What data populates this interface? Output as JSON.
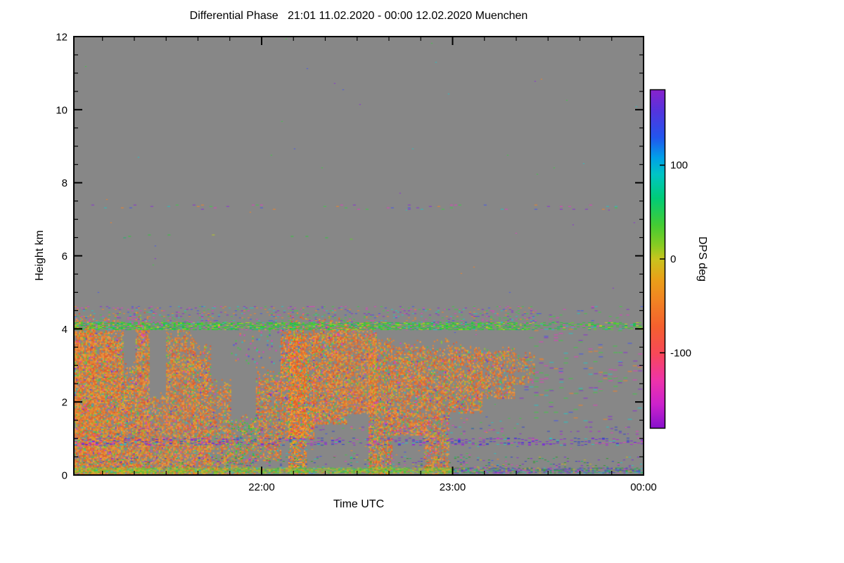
{
  "page": {
    "background": "#ffffff"
  },
  "chart_data": {
    "type": "heatmap",
    "title": "Differential Phase   21:01 11.02.2020 - 00:00 12.02.2020 Muenchen",
    "xlabel": "Time UTC",
    "ylabel": "Height km",
    "x_range_hours": [
      21.0167,
      24.0
    ],
    "x_major_ticks": [
      {
        "hour": 22,
        "label": "22:00"
      },
      {
        "hour": 23,
        "label": "23:00"
      },
      {
        "hour": 24,
        "label": "00:00"
      }
    ],
    "x_minor_step_hours": 0.1666667,
    "y_range_km": [
      0,
      12
    ],
    "y_major_ticks": [
      {
        "km": 0,
        "label": "0"
      },
      {
        "km": 2,
        "label": "2"
      },
      {
        "km": 4,
        "label": "4"
      },
      {
        "km": 6,
        "label": "6"
      },
      {
        "km": 8,
        "label": "8"
      },
      {
        "km": 10,
        "label": "10"
      },
      {
        "km": 12,
        "label": "12"
      }
    ],
    "y_minor_step_km": 0.5,
    "plot_bg": "#878787",
    "axis_color": "#000000",
    "colorbar": {
      "label": "DPS deg",
      "value_range": [
        -180,
        180
      ],
      "ticks": [
        {
          "value": 100,
          "label": "100"
        },
        {
          "value": 0,
          "label": "0"
        },
        {
          "value": -100,
          "label": "-100"
        }
      ],
      "gradient_top_to_bottom": [
        {
          "pos": 0.0,
          "color": "#8822cc"
        },
        {
          "pos": 0.06,
          "color": "#5533dd"
        },
        {
          "pos": 0.14,
          "color": "#2255ee"
        },
        {
          "pos": 0.2,
          "color": "#00a0e8"
        },
        {
          "pos": 0.25,
          "color": "#00c4c4"
        },
        {
          "pos": 0.32,
          "color": "#00cc77"
        },
        {
          "pos": 0.4,
          "color": "#44cc33"
        },
        {
          "pos": 0.46,
          "color": "#88cc22"
        },
        {
          "pos": 0.5,
          "color": "#c8c41e"
        },
        {
          "pos": 0.56,
          "color": "#eaa018"
        },
        {
          "pos": 0.63,
          "color": "#f28024"
        },
        {
          "pos": 0.7,
          "color": "#f4602e"
        },
        {
          "pos": 0.78,
          "color": "#f84858"
        },
        {
          "pos": 0.86,
          "color": "#ee33aa"
        },
        {
          "pos": 0.93,
          "color": "#cc22cc"
        },
        {
          "pos": 1.0,
          "color": "#8811cc"
        }
      ]
    },
    "palettes": {
      "rain": [
        [
          "#f28329",
          0.32
        ],
        [
          "#ef6a22",
          0.2
        ],
        [
          "#fa9b3a",
          0.16
        ],
        [
          "#e8552b",
          0.1
        ],
        [
          "#d8b31e",
          0.07
        ],
        [
          "#8fc92c",
          0.05
        ],
        [
          "#3fc94f",
          0.04
        ],
        [
          "#e23fbf",
          0.03
        ],
        [
          "#27c3c3",
          0.015
        ],
        [
          "#7a2fd6",
          0.015
        ]
      ],
      "mix": [
        [
          "#3ecb46",
          0.22
        ],
        [
          "#e23fbf",
          0.18
        ],
        [
          "#27c3c3",
          0.16
        ],
        [
          "#f28329",
          0.16
        ],
        [
          "#4455ee",
          0.12
        ],
        [
          "#8a2fd6",
          0.16
        ]
      ],
      "green": [
        [
          "#2ecb3a",
          0.45
        ],
        [
          "#5ed42a",
          0.2
        ],
        [
          "#18b86a",
          0.15
        ],
        [
          "#bfd01e",
          0.1
        ],
        [
          "#27c3c3",
          0.05
        ],
        [
          "#e23fbf",
          0.05
        ]
      ],
      "ground": [
        [
          "#2e9e2e",
          0.22
        ],
        [
          "#3344cc",
          0.22
        ],
        [
          "#7a2fd6",
          0.2
        ],
        [
          "#18b86a",
          0.12
        ],
        [
          "#c8b818",
          0.08
        ],
        [
          "#e23fbf",
          0.08
        ],
        [
          "#27c3c3",
          0.08
        ]
      ],
      "purpleline": [
        [
          "#7a2fd6",
          0.35
        ],
        [
          "#3344cc",
          0.25
        ],
        [
          "#b028d8",
          0.2
        ],
        [
          "#e23fbf",
          0.1
        ],
        [
          "#27c3c3",
          0.1
        ]
      ],
      "gy": [
        [
          "#bfd01e",
          0.3
        ],
        [
          "#5ed42a",
          0.28
        ],
        [
          "#2ecb3a",
          0.2
        ],
        [
          "#f28329",
          0.12
        ],
        [
          "#27c3c3",
          0.1
        ]
      ]
    },
    "regions": [
      {
        "t": [
          21.02,
          24.0
        ],
        "y": [
          0,
          12
        ],
        "d": 0.0012,
        "p": "mix",
        "dash": [
          2,
          1
        ],
        "step": [
          3,
          3
        ]
      },
      {
        "t": [
          21.02,
          21.13
        ],
        "y": [
          0,
          4.55
        ],
        "d": 0.8,
        "p": "rain",
        "dash": [
          2,
          2
        ],
        "step": [
          2,
          2
        ],
        "fade": true
      },
      {
        "t": [
          21.13,
          21.27
        ],
        "y": [
          0,
          4.35
        ],
        "d": 0.75,
        "p": "rain",
        "dash": [
          2,
          2
        ],
        "step": [
          2,
          2
        ],
        "fade": true
      },
      {
        "t": [
          21.27,
          21.34
        ],
        "y": [
          0,
          3.1
        ],
        "d": 0.6,
        "p": "rain",
        "dash": [
          2,
          2
        ],
        "step": [
          2,
          2
        ],
        "fade": true
      },
      {
        "t": [
          21.34,
          21.41
        ],
        "y": [
          0,
          4.5
        ],
        "d": 0.7,
        "p": "rain",
        "dash": [
          2,
          2
        ],
        "step": [
          2,
          2
        ],
        "fade": true
      },
      {
        "t": [
          21.41,
          21.5
        ],
        "y": [
          0,
          2.3
        ],
        "d": 0.5,
        "p": "rain",
        "dash": [
          2,
          2
        ],
        "step": [
          2,
          2
        ],
        "fade": true
      },
      {
        "t": [
          21.5,
          21.64
        ],
        "y": [
          0,
          4.15
        ],
        "d": 0.6,
        "p": "rain",
        "dash": [
          2,
          2
        ],
        "step": [
          2,
          2
        ],
        "fade": true
      },
      {
        "t": [
          21.64,
          21.73
        ],
        "y": [
          0,
          3.7
        ],
        "d": 0.55,
        "p": "rain",
        "dash": [
          2,
          2
        ],
        "step": [
          2,
          2
        ],
        "fade": true
      },
      {
        "t": [
          21.73,
          21.84
        ],
        "y": [
          0,
          2.7
        ],
        "d": 0.45,
        "p": "rain",
        "dash": [
          2,
          2
        ],
        "step": [
          2,
          2
        ],
        "fade": true
      },
      {
        "t": [
          21.84,
          21.97
        ],
        "y": [
          0,
          1.7
        ],
        "d": 0.3,
        "p": "rain",
        "dash": [
          2,
          2
        ],
        "step": [
          2,
          2
        ],
        "fade": true
      },
      {
        "t": [
          21.97,
          22.1
        ],
        "y": [
          0.4,
          3.0
        ],
        "d": 0.45,
        "p": "rain",
        "dash": [
          2,
          2
        ],
        "step": [
          2,
          2
        ],
        "fade": true
      },
      {
        "t": [
          22.1,
          22.27
        ],
        "y": [
          1.0,
          4.1
        ],
        "d": 0.55,
        "p": "rain",
        "dash": [
          2,
          2
        ],
        "step": [
          2,
          2
        ],
        "fade": true
      },
      {
        "t": [
          22.14,
          22.23
        ],
        "y": [
          0,
          4.45
        ],
        "d": 0.5,
        "p": "rain",
        "dash": [
          2,
          2
        ],
        "step": [
          2,
          2
        ],
        "fade": true
      },
      {
        "t": [
          22.27,
          22.44
        ],
        "y": [
          1.4,
          4.35
        ],
        "d": 0.6,
        "p": "rain",
        "dash": [
          2,
          2
        ],
        "step": [
          2,
          2
        ],
        "fade": true
      },
      {
        "t": [
          22.44,
          22.6
        ],
        "y": [
          1.7,
          4.25
        ],
        "d": 0.6,
        "p": "rain",
        "dash": [
          2,
          2
        ],
        "step": [
          2,
          2
        ],
        "fade": true
      },
      {
        "t": [
          22.56,
          22.68
        ],
        "y": [
          0,
          3.9
        ],
        "d": 0.55,
        "p": "rain",
        "dash": [
          2,
          2
        ],
        "step": [
          2,
          2
        ],
        "fade": true
      },
      {
        "t": [
          22.68,
          22.85
        ],
        "y": [
          1.1,
          3.7
        ],
        "d": 0.55,
        "p": "rain",
        "dash": [
          2,
          2
        ],
        "step": [
          2,
          2
        ],
        "fade": true
      },
      {
        "t": [
          22.85,
          22.98
        ],
        "y": [
          0,
          3.75
        ],
        "d": 0.5,
        "p": "rain",
        "dash": [
          2,
          2
        ],
        "step": [
          2,
          2
        ],
        "fade": true
      },
      {
        "t": [
          22.98,
          23.15
        ],
        "y": [
          1.7,
          3.65
        ],
        "d": 0.5,
        "p": "rain",
        "dash": [
          2,
          2
        ],
        "step": [
          2,
          2
        ],
        "fade": true
      },
      {
        "t": [
          23.15,
          23.32
        ],
        "y": [
          2.1,
          3.55
        ],
        "d": 0.45,
        "p": "rain",
        "dash": [
          2,
          2
        ],
        "step": [
          2,
          2
        ],
        "fade": true
      },
      {
        "t": [
          23.32,
          23.43
        ],
        "y": [
          2.5,
          3.4
        ],
        "d": 0.28,
        "p": "rain",
        "dash": [
          2,
          2
        ],
        "step": [
          2,
          2
        ],
        "fade": true
      },
      {
        "t": [
          21.82,
          21.97
        ],
        "y": [
          0.3,
          1.6
        ],
        "d": 0.15,
        "p": "green",
        "dash": [
          2,
          2
        ],
        "step": [
          3,
          2
        ]
      },
      {
        "t": [
          21.95,
          23.35
        ],
        "y": [
          0,
          1.6
        ],
        "d": 0.06,
        "p": "mix",
        "dash": [
          3,
          1
        ],
        "step": [
          4,
          2
        ]
      },
      {
        "t": [
          21.84,
          22.14
        ],
        "y": [
          3.0,
          4.0
        ],
        "d": 0.1,
        "p": "mix",
        "dash": [
          2,
          2
        ],
        "step": [
          3,
          2
        ]
      },
      {
        "t": [
          21.02,
          23.4
        ],
        "y": [
          3.98,
          4.18
        ],
        "d": 0.55,
        "p": "green",
        "dash": [
          3,
          1
        ],
        "step": [
          3,
          1
        ]
      },
      {
        "t": [
          23.4,
          24.0
        ],
        "y": [
          3.98,
          4.18
        ],
        "d": 0.3,
        "p": "green",
        "dash": [
          4,
          1
        ],
        "step": [
          4,
          1
        ]
      },
      {
        "t": [
          21.02,
          23.45
        ],
        "y": [
          4.18,
          4.62
        ],
        "d": 0.2,
        "p": "mix",
        "dash": [
          3,
          1
        ],
        "step": [
          3,
          2
        ]
      },
      {
        "t": [
          23.45,
          24.0
        ],
        "y": [
          4.18,
          4.62
        ],
        "d": 0.07,
        "p": "mix",
        "dash": [
          4,
          1
        ],
        "step": [
          5,
          2
        ]
      },
      {
        "t": [
          21.02,
          24.0
        ],
        "y": [
          7.26,
          7.4
        ],
        "d": 0.1,
        "p": "mix",
        "dash": [
          4,
          1
        ],
        "step": [
          6,
          2
        ]
      },
      {
        "t": [
          21.25,
          22.65
        ],
        "y": [
          6.45,
          6.58
        ],
        "d": 0.035,
        "p": "green",
        "dash": [
          4,
          1
        ],
        "step": [
          7,
          2
        ]
      },
      {
        "t": [
          21.02,
          23.0
        ],
        "y": [
          0.05,
          0.2
        ],
        "d": 0.7,
        "p": "gy",
        "dash": [
          3,
          1
        ],
        "step": [
          3,
          1
        ]
      },
      {
        "t": [
          23.0,
          24.0
        ],
        "y": [
          0.05,
          0.2
        ],
        "d": 0.5,
        "p": "ground",
        "dash": [
          3,
          1
        ],
        "step": [
          3,
          1
        ]
      },
      {
        "t": [
          21.02,
          24.0
        ],
        "y": [
          0.22,
          0.5
        ],
        "d": 0.15,
        "p": "ground",
        "dash": [
          3,
          1
        ],
        "step": [
          4,
          2
        ]
      },
      {
        "t": [
          21.02,
          24.0
        ],
        "y": [
          0.82,
          1.02
        ],
        "d": 0.25,
        "p": "purpleline",
        "dash": [
          4,
          1
        ],
        "step": [
          5,
          1
        ]
      },
      {
        "t": [
          21.02,
          24.0
        ],
        "y": [
          1.1,
          1.32
        ],
        "d": 0.09,
        "p": "purpleline",
        "dash": [
          4,
          1
        ],
        "step": [
          6,
          2
        ]
      },
      {
        "t": [
          23.35,
          24.0
        ],
        "y": [
          1.4,
          4.0
        ],
        "d": 0.05,
        "p": "mix",
        "dash": [
          6,
          1
        ],
        "step": [
          7,
          2
        ]
      },
      {
        "t": [
          23.43,
          24.0
        ],
        "y": [
          2.2,
          3.4
        ],
        "d": 0.06,
        "p": "mix",
        "dash": [
          6,
          1
        ],
        "step": [
          7,
          2
        ]
      }
    ]
  }
}
